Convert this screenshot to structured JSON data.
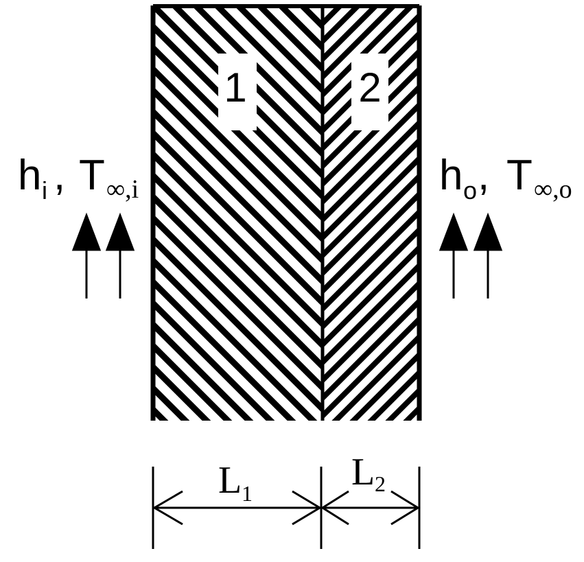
{
  "left_side": {
    "h": "h",
    "h_sub": "i",
    "T": "T",
    "T_sub": "∞,i"
  },
  "right_side": {
    "h": "h",
    "h_sub": "o",
    "T": "T",
    "T_sub": "∞,o"
  },
  "layers": {
    "layer1": "1",
    "layer2": "2"
  },
  "dimensions": {
    "L1": {
      "main": "L",
      "sub": "1"
    },
    "L2": {
      "main": "L",
      "sub": "2"
    }
  }
}
